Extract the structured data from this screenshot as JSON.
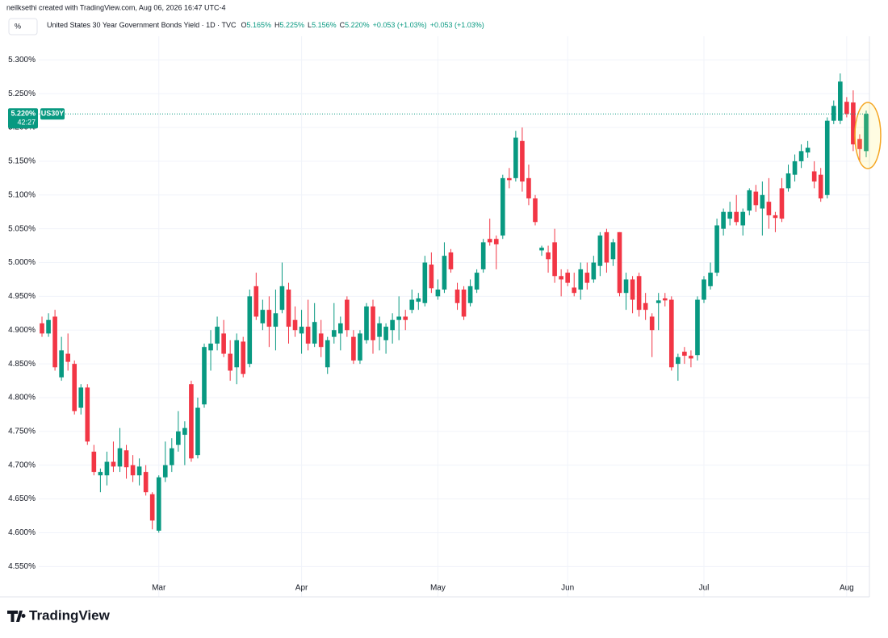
{
  "header": "neilksethi created with TradingView.com, Aug 06, 2026 16:47 UTC-4",
  "scale_button": "%",
  "legend": {
    "symbol": "United States 30 Year Government Bonds Yield · 1D · TVC",
    "ohlc_labels": [
      "O",
      "H",
      "L",
      "C"
    ],
    "ohlc_values": [
      "5.165%",
      "5.225%",
      "5.156%",
      "5.220%"
    ],
    "change": [
      "+0.053 (+1.03%)",
      "+0.053 (+1.03%)"
    ]
  },
  "last_price": {
    "value": 5.22,
    "label": "5.220%",
    "symbol": "US30Y",
    "countdown": "42:27"
  },
  "brand": "TradingView",
  "chart_data": {
    "type": "candlestick",
    "categories": [
      null,
      null,
      null,
      null,
      null,
      null,
      null,
      null,
      null,
      null,
      null,
      null,
      null,
      null,
      null,
      null,
      null,
      null,
      "Mar",
      null,
      null,
      null,
      null,
      null,
      null,
      null,
      null,
      null,
      null,
      null,
      null,
      null,
      null,
      null,
      null,
      null,
      null,
      null,
      null,
      null,
      "Apr",
      null,
      null,
      null,
      null,
      null,
      null,
      null,
      null,
      null,
      null,
      null,
      null,
      null,
      null,
      null,
      null,
      null,
      null,
      null,
      null,
      "May",
      null,
      null,
      null,
      null,
      null,
      null,
      null,
      null,
      null,
      null,
      null,
      null,
      null,
      null,
      null,
      null,
      null,
      null,
      null,
      "Jun",
      null,
      null,
      null,
      null,
      null,
      null,
      null,
      null,
      null,
      null,
      null,
      null,
      null,
      null,
      null,
      null,
      null,
      null,
      null,
      null,
      "Jul",
      null,
      null,
      null,
      null,
      null,
      null,
      null,
      null,
      null,
      null,
      null,
      null,
      null,
      null,
      null,
      null,
      null,
      null,
      null,
      null,
      null,
      "Aug",
      null,
      null,
      null
    ],
    "open": [
      4.91,
      4.895,
      4.92,
      4.83,
      4.865,
      4.85,
      4.785,
      4.815,
      4.72,
      4.685,
      4.685,
      4.705,
      4.698,
      4.722,
      4.7,
      4.685,
      4.69,
      4.657,
      4.603,
      4.682,
      4.7,
      4.73,
      4.745,
      4.82,
      4.715,
      4.79,
      4.87,
      4.88,
      4.895,
      4.865,
      4.845,
      4.883,
      4.85,
      4.965,
      4.91,
      4.93,
      4.905,
      4.93,
      4.96,
      4.915,
      4.895,
      4.905,
      4.88,
      4.895,
      4.845,
      4.89,
      4.895,
      4.945,
      4.89,
      4.855,
      4.885,
      4.935,
      4.89,
      4.885,
      4.9,
      4.915,
      4.92,
      4.93,
      4.942,
      4.94,
      4.997,
      4.95,
      4.96,
      5.015,
      4.96,
      4.96,
      4.94,
      4.96,
      4.99,
      5.035,
      5.035,
      5.04,
      5.125,
      5.125,
      5.18,
      5.125,
      5.095,
      5.018,
      5.015,
      5.03,
      4.98,
      4.985,
      4.963,
      4.96,
      4.985,
      4.975,
      4.995,
      5.045,
      5.005,
      5.045,
      4.955,
      4.975,
      4.98,
      4.94,
      4.92,
      4.94,
      4.947,
      4.945,
      4.85,
      4.868,
      4.862,
      4.863,
      4.945,
      4.965,
      4.985,
      5.05,
      5.065,
      5.075,
      5.055,
      5.077,
      5.105,
      5.08,
      5.09,
      5.07,
      5.11,
      5.11,
      5.13,
      5.15,
      5.163,
      5.135,
      5.13,
      5.1,
      5.21,
      5.21,
      5.238,
      5.237,
      5.183,
      5.165
    ],
    "high": [
      4.92,
      4.925,
      4.93,
      4.89,
      4.895,
      4.855,
      4.82,
      4.82,
      4.73,
      4.695,
      4.72,
      4.735,
      4.755,
      4.73,
      4.715,
      4.71,
      4.7,
      4.66,
      4.685,
      4.735,
      4.74,
      4.78,
      4.765,
      4.825,
      4.8,
      4.88,
      4.9,
      4.92,
      4.915,
      4.885,
      4.895,
      4.89,
      4.96,
      4.985,
      4.945,
      4.95,
      4.96,
      5.0,
      4.97,
      4.935,
      4.93,
      4.945,
      4.94,
      4.915,
      4.89,
      4.94,
      4.92,
      4.95,
      4.9,
      4.9,
      4.94,
      4.945,
      4.92,
      4.91,
      4.925,
      4.95,
      4.93,
      4.96,
      4.955,
      5.01,
      5.015,
      4.975,
      5.03,
      5.02,
      4.97,
      4.965,
      4.975,
      4.99,
      5.035,
      5.065,
      5.04,
      5.13,
      5.14,
      5.195,
      5.2,
      5.145,
      5.1,
      5.025,
      5.025,
      5.05,
      4.99,
      4.99,
      4.985,
      5.0,
      5.0,
      5.01,
      5.045,
      5.05,
      5.035,
      5.045,
      4.985,
      4.98,
      4.985,
      4.955,
      4.925,
      4.955,
      4.955,
      4.95,
      4.865,
      4.875,
      4.87,
      4.95,
      4.98,
      5.0,
      5.065,
      5.08,
      5.09,
      5.1,
      5.08,
      5.11,
      5.115,
      5.12,
      5.125,
      5.075,
      5.125,
      5.145,
      5.16,
      5.175,
      5.18,
      5.15,
      5.14,
      5.215,
      5.24,
      5.28,
      5.245,
      5.255,
      5.19,
      5.225
    ],
    "low": [
      4.89,
      4.89,
      4.84,
      4.825,
      4.84,
      4.775,
      4.775,
      4.73,
      4.685,
      4.66,
      4.67,
      4.69,
      4.69,
      4.68,
      4.675,
      4.67,
      4.655,
      4.605,
      4.6,
      4.675,
      4.69,
      4.72,
      4.7,
      4.705,
      4.71,
      4.785,
      4.84,
      4.87,
      4.86,
      4.825,
      4.82,
      4.83,
      4.845,
      4.915,
      4.9,
      4.875,
      4.87,
      4.925,
      4.88,
      4.89,
      4.865,
      4.87,
      4.875,
      4.86,
      4.835,
      4.88,
      4.87,
      4.89,
      4.85,
      4.85,
      4.88,
      4.865,
      4.87,
      4.865,
      4.88,
      4.885,
      4.9,
      4.925,
      4.93,
      4.935,
      4.955,
      4.945,
      4.955,
      4.985,
      4.93,
      4.915,
      4.935,
      4.955,
      4.985,
      5.025,
      4.99,
      5.035,
      5.11,
      5.12,
      5.105,
      5.085,
      5.055,
      5.01,
      4.985,
      4.97,
      4.95,
      4.965,
      4.95,
      4.945,
      4.96,
      4.97,
      4.98,
      4.985,
      4.995,
      4.95,
      4.93,
      4.925,
      4.92,
      4.915,
      4.86,
      4.9,
      4.935,
      4.84,
      4.825,
      4.85,
      4.845,
      4.855,
      4.94,
      4.96,
      4.98,
      5.04,
      5.055,
      5.055,
      5.04,
      5.07,
      5.075,
      5.04,
      5.05,
      5.045,
      5.06,
      5.105,
      5.12,
      5.14,
      5.155,
      5.11,
      5.09,
      5.095,
      5.205,
      5.205,
      5.215,
      5.165,
      5.15,
      5.156
    ],
    "close": [
      4.895,
      4.915,
      4.845,
      4.87,
      4.853,
      4.78,
      4.815,
      4.735,
      4.69,
      4.69,
      4.705,
      4.698,
      4.725,
      4.697,
      4.685,
      4.698,
      4.66,
      4.618,
      4.682,
      4.7,
      4.725,
      4.75,
      4.755,
      4.71,
      4.785,
      4.875,
      4.88,
      4.905,
      4.865,
      4.84,
      4.885,
      4.835,
      4.95,
      4.92,
      4.93,
      4.905,
      4.925,
      4.965,
      4.905,
      4.9,
      4.905,
      4.88,
      4.912,
      4.875,
      4.885,
      4.9,
      4.91,
      4.9,
      4.855,
      4.895,
      4.935,
      4.885,
      4.91,
      4.905,
      4.915,
      4.92,
      4.915,
      4.945,
      4.947,
      5.0,
      4.962,
      4.96,
      5.01,
      4.99,
      4.94,
      4.92,
      4.965,
      4.985,
      5.03,
      5.03,
      5.027,
      5.125,
      5.122,
      5.185,
      5.12,
      5.095,
      5.06,
      5.022,
      5.005,
      4.98,
      4.975,
      4.97,
      4.955,
      4.99,
      4.97,
      5.0,
      5.04,
      5.0,
      5.03,
      4.955,
      4.975,
      4.945,
      4.93,
      4.93,
      4.9,
      4.944,
      4.944,
      4.845,
      4.86,
      4.862,
      4.858,
      4.945,
      4.975,
      4.985,
      5.055,
      5.075,
      5.075,
      5.06,
      5.075,
      5.107,
      5.085,
      5.1,
      5.07,
      5.066,
      5.065,
      5.132,
      5.15,
      5.165,
      5.17,
      5.12,
      5.095,
      5.21,
      5.232,
      5.268,
      5.22,
      5.175,
      5.168,
      5.22
    ],
    "up_color": "#089981",
    "down_color": "#f23645",
    "ylim": [
      4.505,
      5.335
    ],
    "yticks": [
      {
        "value": 4.55,
        "label": "4.550%"
      },
      {
        "value": 4.6,
        "label": "4.600%"
      },
      {
        "value": 4.65,
        "label": "4.650%"
      },
      {
        "value": 4.7,
        "label": "4.700%"
      },
      {
        "value": 4.75,
        "label": "4.750%"
      },
      {
        "value": 4.8,
        "label": "4.800%"
      },
      {
        "value": 4.85,
        "label": "4.850%"
      },
      {
        "value": 4.9,
        "label": "4.900%"
      },
      {
        "value": 4.95,
        "label": "4.950%"
      },
      {
        "value": 5.0,
        "label": "5.000%"
      },
      {
        "value": 5.05,
        "label": "5.050%"
      },
      {
        "value": 5.1,
        "label": "5.100%"
      },
      {
        "value": 5.15,
        "label": "5.150%"
      },
      {
        "value": 5.2,
        "label": "5.200%"
      },
      {
        "value": 5.25,
        "label": "5.250%"
      },
      {
        "value": 5.3,
        "label": "5.300%"
      }
    ],
    "grid": true
  }
}
